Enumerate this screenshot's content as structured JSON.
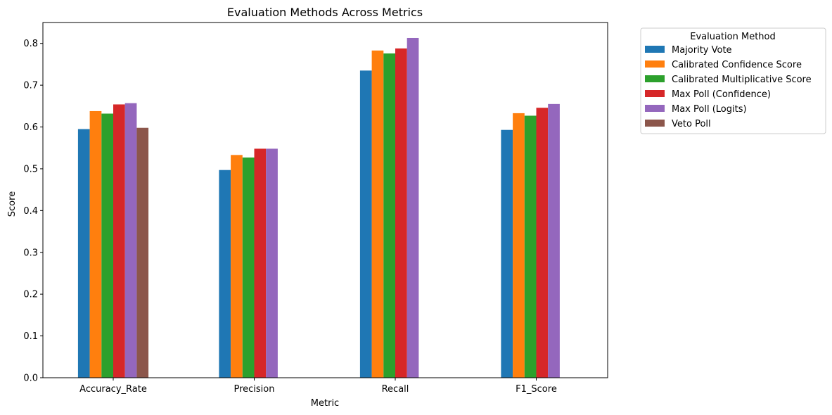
{
  "chart_data": {
    "type": "bar",
    "title": "Evaluation Methods Across Metrics",
    "xlabel": "Metric",
    "ylabel": "Score",
    "ylim": [
      0,
      0.85
    ],
    "yticks": [
      "0.0",
      "0.1",
      "0.2",
      "0.3",
      "0.4",
      "0.5",
      "0.6",
      "0.7",
      "0.8"
    ],
    "categories": [
      "Accuracy_Rate",
      "Precision",
      "Recall",
      "F1_Score"
    ],
    "legend_title": "Evaluation Method",
    "legend_position": "outside-upper-right",
    "grid": false,
    "series": [
      {
        "name": "Majority Vote",
        "color": "#1f77b4",
        "values": [
          0.595,
          0.497,
          0.735,
          0.593
        ]
      },
      {
        "name": "Calibrated Confidence Score",
        "color": "#ff7f0e",
        "values": [
          0.638,
          0.533,
          0.783,
          0.633
        ]
      },
      {
        "name": "Calibrated Multiplicative Score",
        "color": "#2ca02c",
        "values": [
          0.632,
          0.527,
          0.776,
          0.627
        ]
      },
      {
        "name": "Max Poll (Confidence)",
        "color": "#d62728",
        "values": [
          0.654,
          0.548,
          0.788,
          0.646
        ]
      },
      {
        "name": "Max Poll (Logits)",
        "color": "#9467bd",
        "values": [
          0.657,
          0.548,
          0.813,
          0.655
        ]
      },
      {
        "name": "Veto Poll",
        "color": "#8c564b",
        "values": [
          0.598,
          null,
          null,
          null
        ]
      }
    ]
  }
}
